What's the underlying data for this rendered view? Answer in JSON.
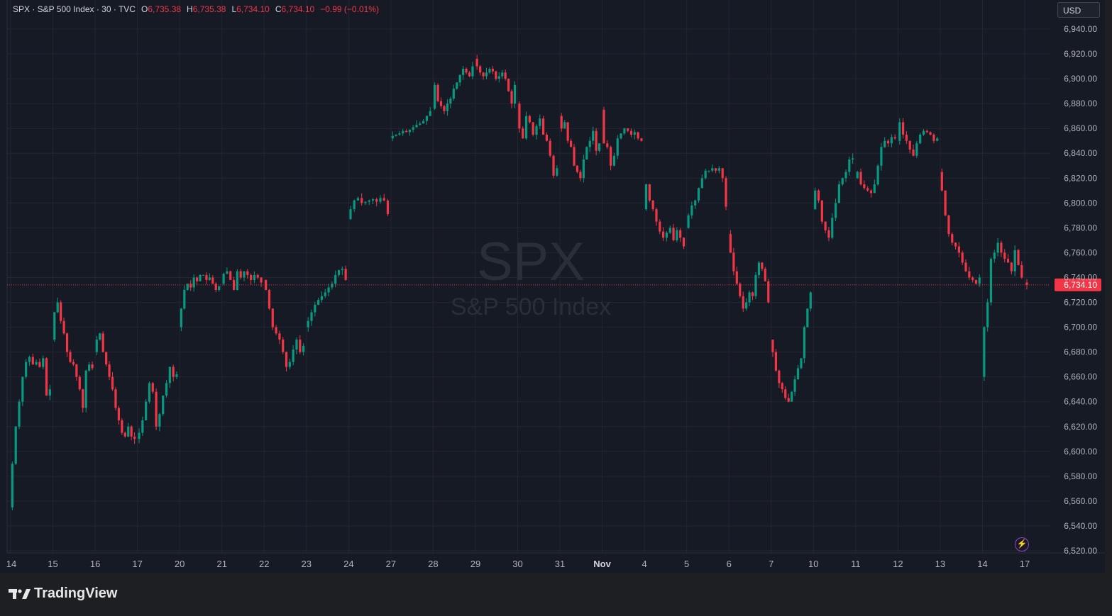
{
  "header": {
    "symbol": "SPX · S&P 500 Index · 30 · TVC",
    "open_label": "O",
    "open": "6,735.38",
    "high_label": "H",
    "high": "6,735.38",
    "low_label": "L",
    "low": "6,734.10",
    "close_label": "C",
    "close": "6,734.10",
    "change": "−0.99 (−0.01%)"
  },
  "currency": "USD",
  "watermark": {
    "symbol": "SPX",
    "name": "S&P 500 Index"
  },
  "brand": "TradingView",
  "colors": {
    "up": "#089981",
    "down": "#f23645",
    "background": "#161a25",
    "grid": "#232632",
    "axis_text": "#b2b5be",
    "price_line": "#f23645"
  },
  "chart_data": {
    "type": "candlestick",
    "symbol": "SPX",
    "interval": "30",
    "ylim": [
      6520,
      6940
    ],
    "y_ticks": [
      6520,
      6540,
      6560,
      6580,
      6600,
      6620,
      6640,
      6660,
      6680,
      6700,
      6720,
      6740,
      6760,
      6780,
      6800,
      6820,
      6840,
      6860,
      6880,
      6900,
      6920,
      6940
    ],
    "y_tick_labels": [
      "6,520.00",
      "6,540.00",
      "6,560.00",
      "6,580.00",
      "6,600.00",
      "6,620.00",
      "6,640.00",
      "6,660.00",
      "6,680.00",
      "6,700.00",
      "6,720.00",
      "6,740.00",
      "6,760.00",
      "6,780.00",
      "6,800.00",
      "6,820.00",
      "6,840.00",
      "6,860.00",
      "6,880.00",
      "6,900.00",
      "6,920.00",
      "6,940.00"
    ],
    "x_labels": [
      "14",
      "15",
      "16",
      "17",
      "20",
      "21",
      "22",
      "23",
      "24",
      "27",
      "28",
      "29",
      "30",
      "31",
      "Nov",
      "4",
      "5",
      "6",
      "7",
      "10",
      "11",
      "12",
      "13",
      "14",
      "17"
    ],
    "last_price": 6734.1,
    "last_price_label": "6,734.10",
    "grid": true,
    "days": [
      {
        "label": "14",
        "path": [
          6555,
          6590,
          6620,
          6640,
          6660,
          6672,
          6676,
          6670,
          6672,
          6668,
          6675,
          6645,
          6650
        ]
      },
      {
        "label": "15",
        "path": [
          6690,
          6712,
          6720,
          6705,
          6695,
          6680,
          6672,
          6670,
          6660,
          6650,
          6635,
          6665,
          6670,
          6667
        ]
      },
      {
        "label": "16",
        "path": [
          6680,
          6690,
          6695,
          6680,
          6670,
          6660,
          6650,
          6635,
          6625,
          6615,
          6612,
          6620,
          6612,
          6610
        ]
      },
      {
        "label": "17",
        "path": [
          6610,
          6615,
          6625,
          6640,
          6655,
          6648,
          6620,
          6630,
          6645,
          6655,
          6668,
          6660,
          6662
        ]
      },
      {
        "label": "20",
        "path": [
          6700,
          6715,
          6730,
          6735,
          6732,
          6740,
          6737,
          6742,
          6742,
          6738,
          6740,
          6735,
          6730,
          6733
        ]
      },
      {
        "label": "21",
        "path": [
          6735,
          6743,
          6745,
          6738,
          6730,
          6745,
          6740,
          6745,
          6742,
          6738,
          6742,
          6740,
          6736
        ]
      },
      {
        "label": "22",
        "path": [
          6738,
          6730,
          6715,
          6700,
          6695,
          6690,
          6680,
          6668,
          6672,
          6682,
          6690,
          6680,
          6685
        ]
      },
      {
        "label": "23",
        "path": [
          6700,
          6705,
          6712,
          6718,
          6722,
          6725,
          6728,
          6732,
          6735,
          6742,
          6746,
          6747,
          6738
        ]
      },
      {
        "label": "24",
        "path": [
          6787,
          6795,
          6802,
          6804,
          6800,
          6801,
          6802,
          6803,
          6801,
          6804,
          6802,
          6791
        ]
      },
      {
        "label": "27",
        "path": [
          6852,
          6854,
          6855,
          6856,
          6858,
          6857,
          6859,
          6861,
          6863,
          6864,
          6866,
          6870,
          6874
        ]
      },
      {
        "label": "28",
        "path": [
          6876,
          6895,
          6882,
          6878,
          6874,
          6880,
          6884,
          6892,
          6897,
          6903,
          6908,
          6905,
          6902,
          6910
        ]
      },
      {
        "label": "29",
        "path": [
          6916,
          6910,
          6905,
          6902,
          6905,
          6908,
          6906,
          6900,
          6902,
          6905,
          6900,
          6890,
          6880,
          6895
        ]
      },
      {
        "label": "30",
        "path": [
          6880,
          6860,
          6852,
          6870,
          6865,
          6855,
          6862,
          6868,
          6855,
          6850,
          6838,
          6822,
          6828
        ]
      },
      {
        "label": "31",
        "path": [
          6870,
          6860,
          6865,
          6850,
          6845,
          6830,
          6825,
          6820,
          6835,
          6845,
          6850,
          6858,
          6842,
          6848
        ]
      },
      {
        "label": "Nov",
        "path": [
          6875,
          6848,
          6845,
          6830,
          6838,
          6852,
          6856,
          6860,
          6858,
          6855,
          6857,
          6852,
          6850
        ]
      },
      {
        "label": "4",
        "path": [
          6795,
          6815,
          6802,
          6795,
          6785,
          6777,
          6772,
          6776,
          6780,
          6770,
          6778,
          6772,
          6765
        ]
      },
      {
        "label": "5",
        "path": [
          6780,
          6790,
          6798,
          6802,
          6812,
          6820,
          6826,
          6826,
          6828,
          6826,
          6828,
          6820,
          6797
        ]
      },
      {
        "label": "6",
        "path": [
          6775,
          6760,
          6745,
          6735,
          6725,
          6715,
          6720,
          6728,
          6725,
          6742,
          6752,
          6747,
          6737,
          6720
        ]
      },
      {
        "label": "7",
        "path": [
          6690,
          6680,
          6665,
          6655,
          6650,
          6643,
          6640,
          6648,
          6658,
          6667,
          6675,
          6700,
          6715,
          6728
        ]
      },
      {
        "label": "10",
        "path": [
          6795,
          6810,
          6802,
          6785,
          6778,
          6772,
          6788,
          6800,
          6815,
          6820,
          6825,
          6835,
          6836
        ]
      },
      {
        "label": "11",
        "path": [
          6820,
          6825,
          6815,
          6812,
          6810,
          6808,
          6815,
          6830,
          6845,
          6850,
          6848,
          6853,
          6852
        ]
      },
      {
        "label": "12",
        "path": [
          6850,
          6865,
          6855,
          6850,
          6843,
          6838,
          6848,
          6855,
          6858,
          6857,
          6855,
          6850,
          6852
        ]
      },
      {
        "label": "13",
        "path": [
          6825,
          6810,
          6790,
          6775,
          6768,
          6765,
          6760,
          6752,
          6745,
          6740,
          6738,
          6735,
          6740
        ]
      },
      {
        "label": "14",
        "path": [
          6660,
          6700,
          6720,
          6755,
          6760,
          6768,
          6760,
          6755,
          6752,
          6745,
          6762,
          6750,
          6740
        ]
      },
      {
        "label": "17",
        "path": [
          6736,
          6734
        ]
      }
    ]
  }
}
